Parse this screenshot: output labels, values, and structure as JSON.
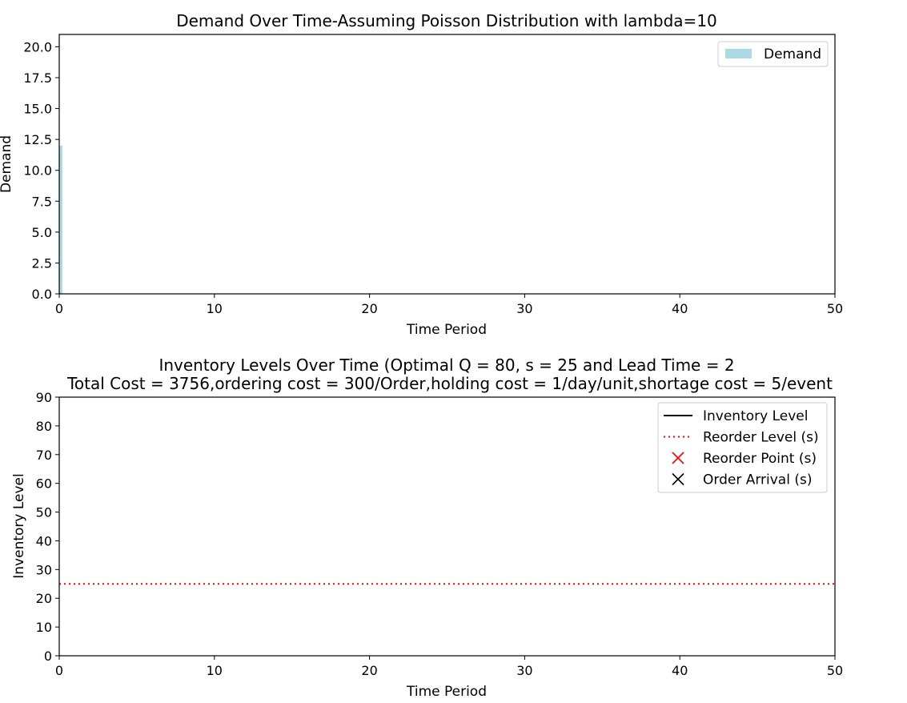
{
  "figure": {
    "background": "#ffffff"
  },
  "chart_data": [
    {
      "type": "bar",
      "title": "Demand Over Time-Assuming Poisson Distribution with lambda=10",
      "xlabel": "Time Period",
      "ylabel": "Demand",
      "xlim": [
        0,
        50
      ],
      "ylim": [
        0,
        21
      ],
      "xticks": [
        0,
        10,
        20,
        30,
        40,
        50
      ],
      "xtick_labels": [
        "0",
        "10",
        "20",
        "30",
        "40",
        "50"
      ],
      "yticks": [
        0,
        2.5,
        5,
        7.5,
        10,
        12.5,
        15,
        17.5,
        20
      ],
      "ytick_labels": [
        "0.0",
        "2.5",
        "5.0",
        "7.5",
        "10.0",
        "12.5",
        "15.0",
        "17.5",
        "20.0"
      ],
      "grid": false,
      "legend_position": "top-right",
      "series": [
        {
          "name": "Demand",
          "color": "#add8e6",
          "bar_width": 0.4,
          "points": [
            {
              "x": 0,
              "y": 12
            }
          ]
        }
      ]
    },
    {
      "type": "line",
      "title_lines": [
        "Inventory Levels Over Time (Optimal Q = 80, s = 25 and Lead Time = 2",
        "Total Cost = 3756,ordering cost = 300/Order,holding cost = 1/day/unit,shortage cost = 5/event"
      ],
      "xlabel": "Time Period",
      "ylabel": "Inventory Level",
      "xlim": [
        0,
        50
      ],
      "ylim": [
        0,
        90
      ],
      "xticks": [
        0,
        10,
        20,
        30,
        40,
        50
      ],
      "xtick_labels": [
        "0",
        "10",
        "20",
        "30",
        "40",
        "50"
      ],
      "yticks": [
        0,
        10,
        20,
        30,
        40,
        50,
        60,
        70,
        80,
        90
      ],
      "ytick_labels": [
        "0",
        "10",
        "20",
        "30",
        "40",
        "50",
        "60",
        "70",
        "80",
        "90"
      ],
      "grid": false,
      "legend_position": "top-right",
      "series": [
        {
          "name": "Inventory Level",
          "kind": "line",
          "color": "#000000",
          "dash": "solid",
          "points": []
        },
        {
          "name": "Reorder Level (s)",
          "kind": "hline",
          "color": "#ff0000",
          "dash": "dotted",
          "y": 25
        },
        {
          "name": "Reorder Point (s)",
          "kind": "marker",
          "marker": "x",
          "color": "#ff0000",
          "points": []
        },
        {
          "name": "Order Arrival (s)",
          "kind": "marker",
          "marker": "x",
          "color": "#000000",
          "points": []
        }
      ]
    }
  ]
}
